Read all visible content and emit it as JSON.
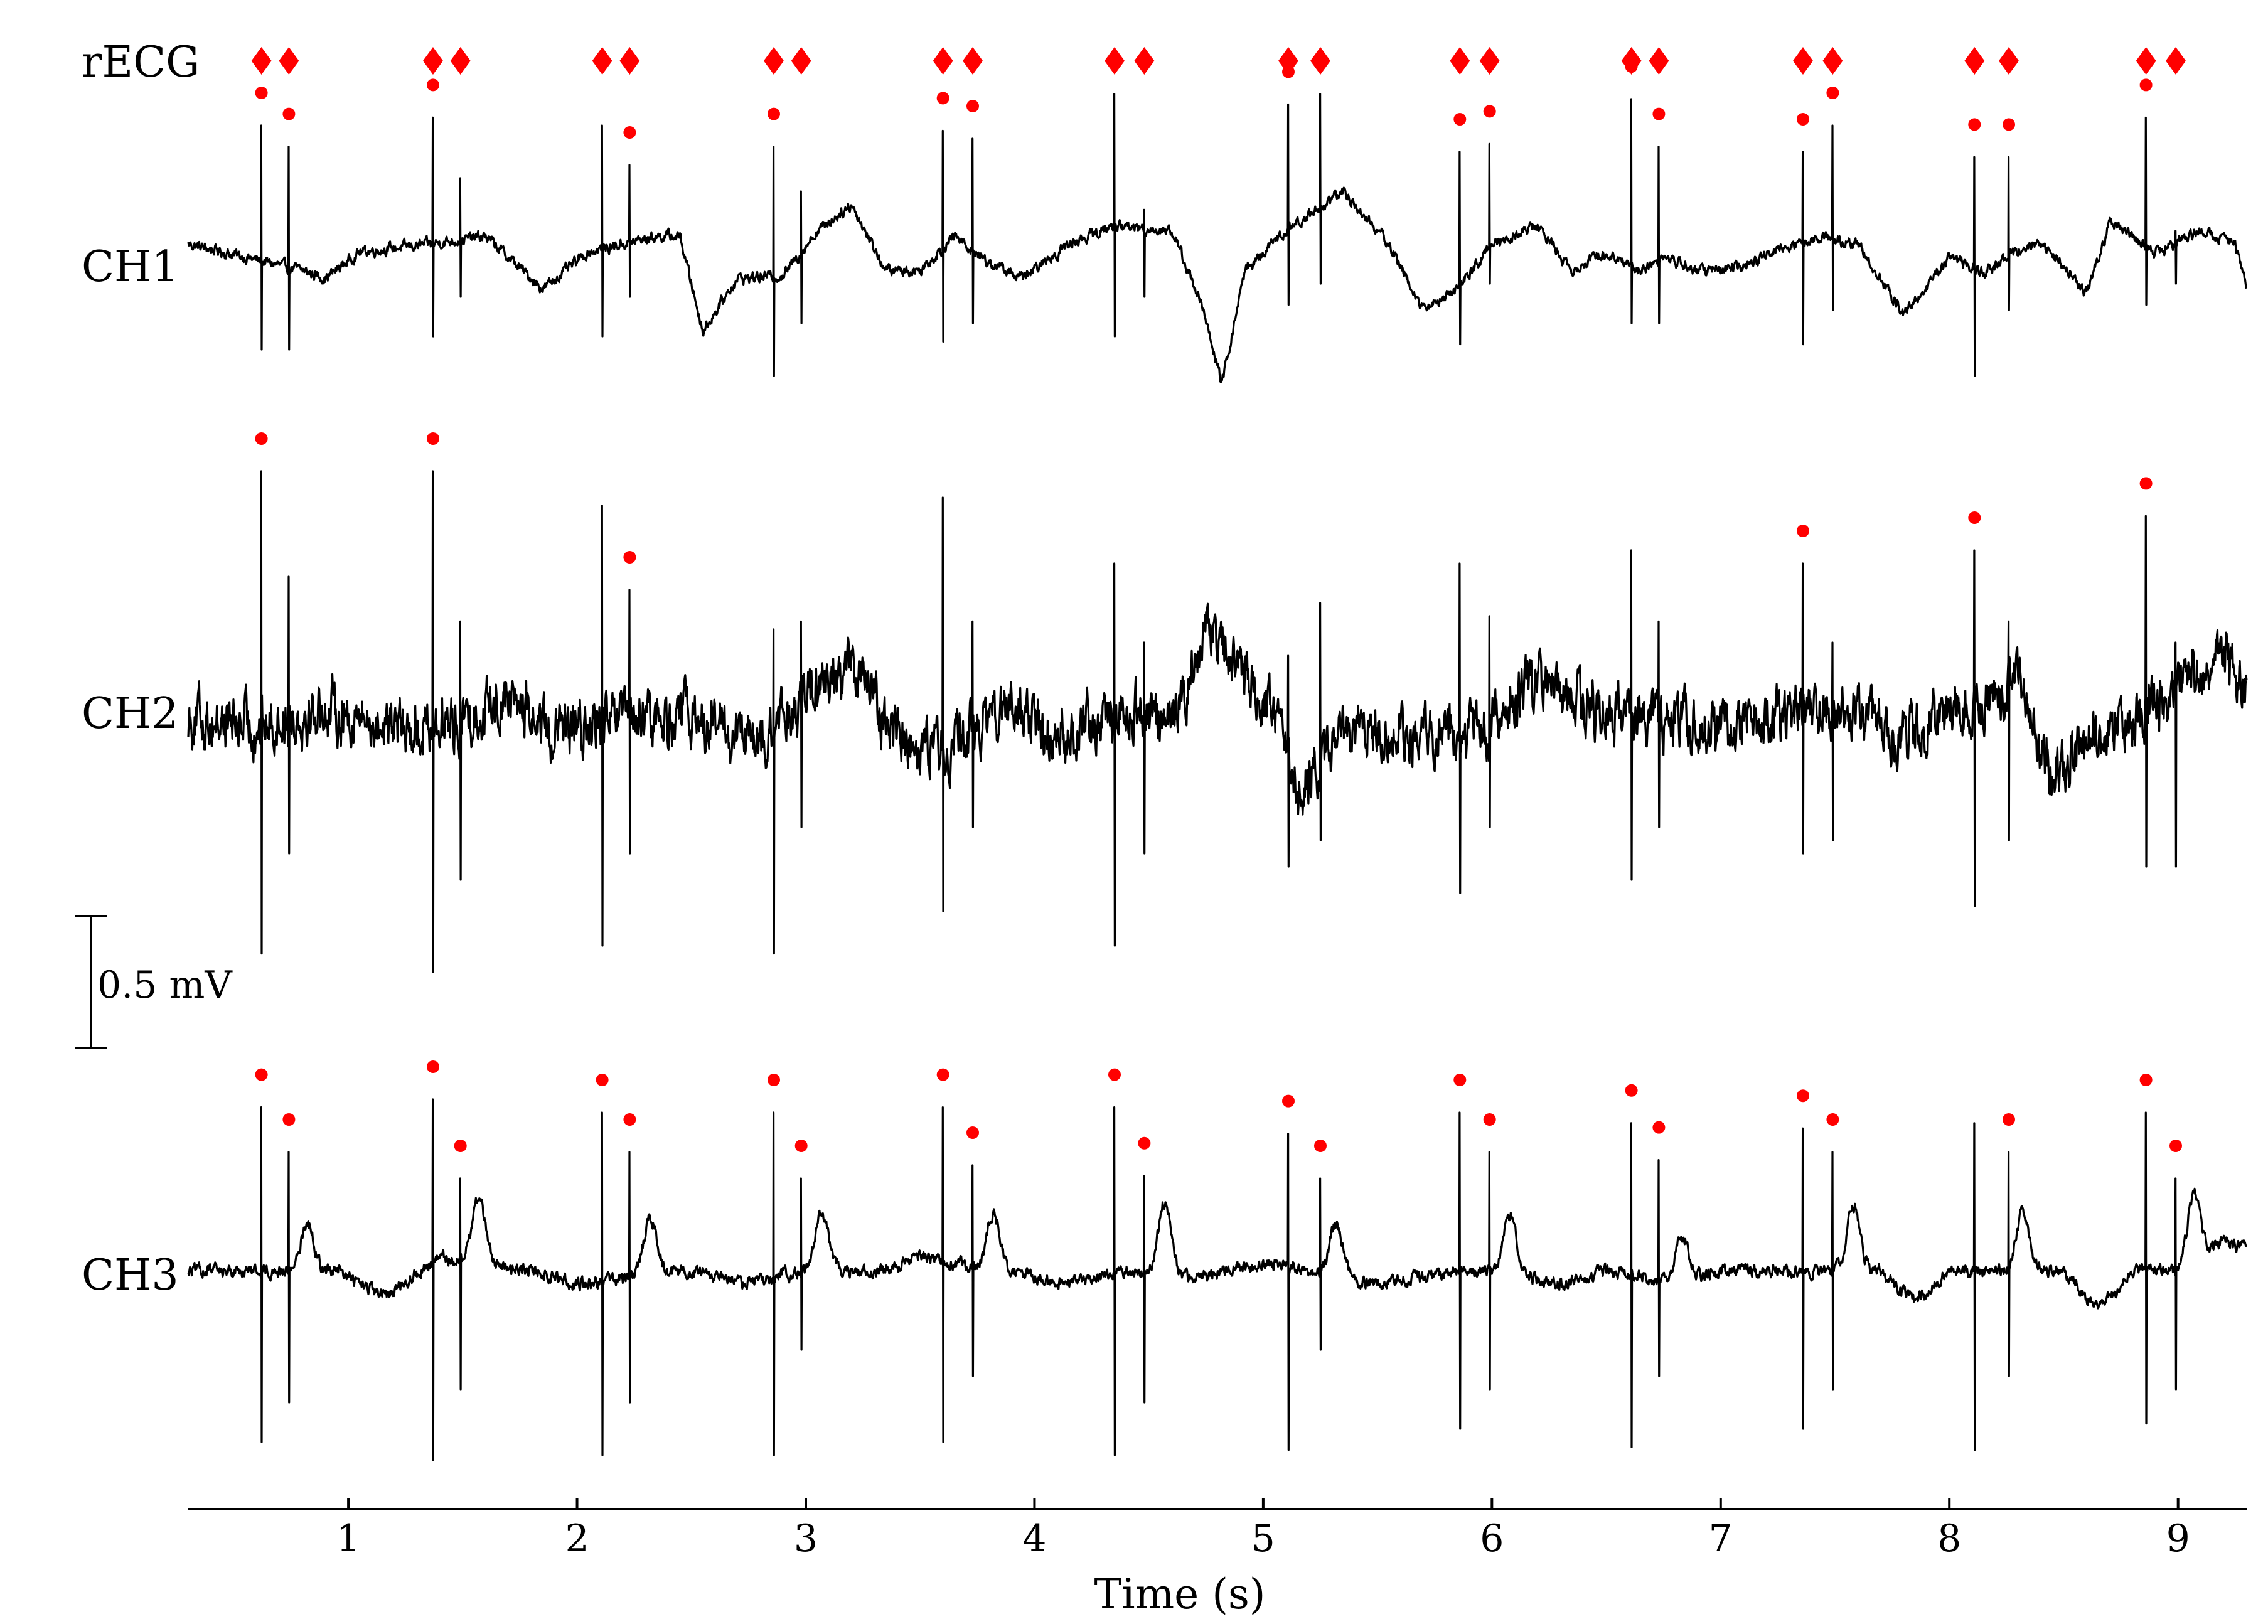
{
  "chart_data": {
    "type": "line",
    "xlabel": "Time (s)",
    "xlim": [
      0.3,
      9.3
    ],
    "xticks": [
      1,
      2,
      3,
      4,
      5,
      6,
      7,
      8,
      9
    ],
    "xtick_labels": [
      "1",
      "2",
      "3",
      "4",
      "5",
      "6",
      "7",
      "8",
      "9"
    ],
    "scale_bar": {
      "label": "0.5 mV",
      "value_mV": 0.5
    },
    "marker_color": "#ff0000",
    "line_color": "#000000",
    "recg": {
      "name": "rECG",
      "marker": "diamond",
      "beats": [
        0.62,
        0.74,
        1.37,
        1.49,
        2.11,
        2.23,
        2.86,
        2.98,
        3.6,
        3.73,
        4.35,
        4.48,
        5.11,
        5.25,
        5.86,
        5.99,
        6.61,
        6.73,
        7.36,
        7.49,
        8.11,
        8.26,
        8.86,
        8.99
      ]
    },
    "series": [
      {
        "name": "CH1",
        "noise": 0.016,
        "wander": [
          [
            0.3,
            0.05
          ],
          [
            0.55,
            0.0
          ],
          [
            0.8,
            -0.05
          ],
          [
            0.9,
            -0.08
          ],
          [
            1.05,
            0.02
          ],
          [
            1.35,
            0.05
          ],
          [
            1.6,
            0.08
          ],
          [
            1.85,
            -0.12
          ],
          [
            2.05,
            0.02
          ],
          [
            2.35,
            0.08
          ],
          [
            2.45,
            0.08
          ],
          [
            2.55,
            -0.28
          ],
          [
            2.7,
            -0.08
          ],
          [
            2.9,
            -0.07
          ],
          [
            3.05,
            0.1
          ],
          [
            3.2,
            0.2
          ],
          [
            3.35,
            -0.05
          ],
          [
            3.5,
            -0.05
          ],
          [
            3.65,
            0.08
          ],
          [
            3.8,
            -0.02
          ],
          [
            3.95,
            -0.08
          ],
          [
            4.15,
            0.05
          ],
          [
            4.35,
            0.12
          ],
          [
            4.6,
            0.1
          ],
          [
            4.72,
            -0.15
          ],
          [
            4.82,
            -0.48
          ],
          [
            4.92,
            -0.05
          ],
          [
            5.1,
            0.1
          ],
          [
            5.35,
            0.25
          ],
          [
            5.55,
            0.05
          ],
          [
            5.7,
            -0.2
          ],
          [
            5.85,
            -0.12
          ],
          [
            6.0,
            0.05
          ],
          [
            6.2,
            0.12
          ],
          [
            6.35,
            -0.05
          ],
          [
            6.5,
            0.02
          ],
          [
            6.65,
            -0.05
          ],
          [
            6.75,
            0.0
          ],
          [
            6.9,
            -0.05
          ],
          [
            7.1,
            -0.04
          ],
          [
            7.25,
            0.03
          ],
          [
            7.45,
            0.08
          ],
          [
            7.6,
            0.05
          ],
          [
            7.8,
            -0.22
          ],
          [
            8.0,
            0.0
          ],
          [
            8.15,
            -0.06
          ],
          [
            8.35,
            0.05
          ],
          [
            8.45,
            0.02
          ],
          [
            8.6,
            -0.14
          ],
          [
            8.7,
            0.13
          ],
          [
            8.9,
            0.02
          ],
          [
            9.1,
            0.1
          ],
          [
            9.25,
            0.05
          ],
          [
            9.3,
            -0.1
          ]
        ],
        "qrs_fetal": [
          [
            0.62,
            0.5,
            -0.35
          ],
          [
            1.37,
            0.53,
            -0.3
          ],
          [
            2.11,
            0.5,
            -0.3
          ],
          [
            2.86,
            0.42,
            -0.45
          ],
          [
            3.6,
            0.48,
            -0.32
          ],
          [
            4.35,
            0.62,
            -0.3
          ],
          [
            5.11,
            0.58,
            -0.18
          ],
          [
            5.86,
            0.4,
            -0.33
          ],
          [
            6.61,
            0.6,
            -0.25
          ],
          [
            7.36,
            0.4,
            -0.33
          ],
          [
            8.11,
            0.38,
            -0.45
          ],
          [
            8.86,
            0.53,
            -0.18
          ]
        ],
        "qrs_maternal": [
          [
            0.74,
            0.42,
            -0.35
          ],
          [
            1.49,
            0.3,
            -0.15
          ],
          [
            2.23,
            0.35,
            -0.15
          ],
          [
            2.98,
            0.25,
            -0.25
          ],
          [
            3.73,
            0.45,
            -0.25
          ],
          [
            4.48,
            0.18,
            -0.15
          ],
          [
            5.25,
            0.62,
            -0.1
          ],
          [
            5.99,
            0.43,
            -0.1
          ],
          [
            6.73,
            0.42,
            -0.25
          ],
          [
            7.49,
            0.5,
            -0.2
          ],
          [
            8.26,
            0.38,
            -0.2
          ],
          [
            8.99,
            0.1,
            -0.1
          ]
        ],
        "dots": [
          [
            0.62,
            0.5
          ],
          [
            0.74,
            0.42
          ],
          [
            1.37,
            0.53
          ],
          [
            2.23,
            0.35
          ],
          [
            2.86,
            0.42
          ],
          [
            3.6,
            0.48
          ],
          [
            3.73,
            0.45
          ],
          [
            4.35,
            0.62
          ],
          [
            5.11,
            0.58
          ],
          [
            5.25,
            0.62
          ],
          [
            5.86,
            0.4
          ],
          [
            5.99,
            0.43
          ],
          [
            6.61,
            0.6
          ],
          [
            6.73,
            0.42
          ],
          [
            7.36,
            0.4
          ],
          [
            7.49,
            0.5
          ],
          [
            8.11,
            0.38
          ],
          [
            8.26,
            0.38
          ],
          [
            8.86,
            0.53
          ]
        ]
      },
      {
        "name": "CH2",
        "noise": 0.08,
        "wander": [
          [
            0.3,
            0.02
          ],
          [
            0.6,
            -0.02
          ],
          [
            0.9,
            0.05
          ],
          [
            1.2,
            -0.03
          ],
          [
            1.5,
            0.0
          ],
          [
            1.7,
            0.1
          ],
          [
            1.9,
            -0.05
          ],
          [
            2.2,
            0.0
          ],
          [
            2.5,
            0.02
          ],
          [
            2.8,
            -0.1
          ],
          [
            3.0,
            0.1
          ],
          [
            3.2,
            0.22
          ],
          [
            3.4,
            -0.05
          ],
          [
            3.6,
            -0.1
          ],
          [
            3.9,
            0.05
          ],
          [
            4.1,
            -0.05
          ],
          [
            4.4,
            0.05
          ],
          [
            4.6,
            0.0
          ],
          [
            4.75,
            0.35
          ],
          [
            5.0,
            0.1
          ],
          [
            5.15,
            -0.25
          ],
          [
            5.4,
            0.0
          ],
          [
            5.6,
            -0.05
          ],
          [
            5.8,
            -0.05
          ],
          [
            6.0,
            0.0
          ],
          [
            6.2,
            0.15
          ],
          [
            6.5,
            0.02
          ],
          [
            6.8,
            0.0
          ],
          [
            7.1,
            -0.02
          ],
          [
            7.4,
            0.05
          ],
          [
            7.6,
            0.05
          ],
          [
            7.8,
            -0.05
          ],
          [
            8.0,
            0.02
          ],
          [
            8.3,
            0.15
          ],
          [
            8.45,
            -0.2
          ],
          [
            8.6,
            -0.1
          ],
          [
            8.8,
            0.0
          ],
          [
            9.0,
            0.15
          ],
          [
            9.2,
            0.25
          ],
          [
            9.3,
            0.1
          ]
        ],
        "qrs_fetal": [
          [
            0.62,
            0.95,
            -0.88
          ],
          [
            1.37,
            0.95,
            -0.95
          ],
          [
            2.11,
            0.82,
            -0.85
          ],
          [
            2.86,
            0.35,
            -0.88
          ],
          [
            3.6,
            0.85,
            -0.72
          ],
          [
            4.35,
            0.6,
            -0.85
          ],
          [
            5.11,
            0.25,
            -0.55
          ],
          [
            5.86,
            0.6,
            -0.65
          ],
          [
            6.61,
            0.65,
            -0.6
          ],
          [
            7.36,
            0.6,
            -0.5
          ],
          [
            8.11,
            0.65,
            -0.7
          ],
          [
            8.86,
            0.78,
            -0.55
          ]
        ],
        "qrs_maternal": [
          [
            0.74,
            0.55,
            -0.5
          ],
          [
            1.49,
            0.38,
            -0.6
          ],
          [
            2.23,
            0.5,
            -0.5
          ],
          [
            2.98,
            0.38,
            -0.4
          ],
          [
            3.73,
            0.38,
            -0.4
          ],
          [
            4.48,
            0.3,
            -0.5
          ],
          [
            5.25,
            0.45,
            -0.45
          ],
          [
            5.99,
            0.4,
            -0.4
          ],
          [
            6.73,
            0.38,
            -0.4
          ],
          [
            7.49,
            0.3,
            -0.45
          ],
          [
            8.26,
            0.38,
            -0.45
          ],
          [
            8.99,
            0.3,
            -0.55
          ]
        ],
        "dots": [
          [
            0.62,
            0.95
          ],
          [
            1.37,
            0.95
          ],
          [
            2.23,
            0.5
          ],
          [
            7.36,
            0.6
          ],
          [
            8.11,
            0.65
          ],
          [
            8.86,
            0.78
          ]
        ]
      },
      {
        "name": "CH3",
        "noise": 0.018,
        "wander": [
          [
            0.3,
            0.0
          ],
          [
            0.8,
            0.0
          ],
          [
            0.95,
            0.0
          ],
          [
            1.15,
            -0.1
          ],
          [
            1.4,
            0.05
          ],
          [
            1.8,
            0.0
          ],
          [
            2.0,
            -0.05
          ],
          [
            2.5,
            0.0
          ],
          [
            2.7,
            -0.05
          ],
          [
            3.0,
            0.0
          ],
          [
            3.35,
            0.0
          ],
          [
            3.5,
            0.05
          ],
          [
            3.9,
            0.0
          ],
          [
            4.1,
            -0.05
          ],
          [
            4.4,
            0.0
          ],
          [
            4.7,
            -0.03
          ],
          [
            5.0,
            0.03
          ],
          [
            5.5,
            -0.05
          ],
          [
            5.7,
            -0.02
          ],
          [
            6.0,
            0.0
          ],
          [
            6.3,
            -0.05
          ],
          [
            6.5,
            0.0
          ],
          [
            6.8,
            -0.05
          ],
          [
            7.0,
            0.0
          ],
          [
            7.2,
            0.0
          ],
          [
            7.5,
            0.0
          ],
          [
            7.7,
            0.0
          ],
          [
            7.85,
            -0.12
          ],
          [
            8.0,
            0.0
          ],
          [
            8.5,
            0.0
          ],
          [
            8.65,
            -0.15
          ],
          [
            8.8,
            0.0
          ],
          [
            9.0,
            0.0
          ],
          [
            9.2,
            0.12
          ],
          [
            9.3,
            0.08
          ]
        ],
        "p_waves": [
          [
            0.82,
            0.18
          ],
          [
            1.57,
            0.25
          ],
          [
            2.32,
            0.22
          ],
          [
            3.07,
            0.22
          ],
          [
            3.82,
            0.2
          ],
          [
            4.57,
            0.28
          ],
          [
            5.32,
            0.2
          ],
          [
            6.08,
            0.22
          ],
          [
            6.83,
            0.18
          ],
          [
            7.58,
            0.25
          ],
          [
            8.32,
            0.22
          ],
          [
            9.07,
            0.25
          ]
        ],
        "qrs_fetal": [
          [
            0.62,
            0.62,
            -0.65
          ],
          [
            1.37,
            0.65,
            -0.72
          ],
          [
            2.11,
            0.6,
            -0.7
          ],
          [
            2.86,
            0.6,
            -0.7
          ],
          [
            3.6,
            0.62,
            -0.65
          ],
          [
            4.35,
            0.62,
            -0.7
          ],
          [
            5.11,
            0.52,
            -0.68
          ],
          [
            5.86,
            0.6,
            -0.6
          ],
          [
            6.61,
            0.56,
            -0.67
          ],
          [
            7.36,
            0.54,
            -0.6
          ],
          [
            8.11,
            0.56,
            -0.68
          ],
          [
            8.86,
            0.6,
            -0.58
          ]
        ],
        "qrs_maternal": [
          [
            0.74,
            0.45,
            -0.5
          ],
          [
            1.49,
            0.35,
            -0.45
          ],
          [
            2.23,
            0.45,
            -0.5
          ],
          [
            2.98,
            0.35,
            -0.3
          ],
          [
            3.73,
            0.4,
            -0.4
          ],
          [
            4.48,
            0.36,
            -0.5
          ],
          [
            5.25,
            0.35,
            -0.3
          ],
          [
            5.99,
            0.45,
            -0.45
          ],
          [
            6.73,
            0.42,
            -0.4
          ],
          [
            7.49,
            0.45,
            -0.45
          ],
          [
            8.26,
            0.45,
            -0.4
          ],
          [
            8.99,
            0.35,
            -0.45
          ]
        ],
        "dots": [
          [
            0.62,
            0.62
          ],
          [
            0.74,
            0.45
          ],
          [
            1.37,
            0.65
          ],
          [
            1.49,
            0.35
          ],
          [
            2.11,
            0.6
          ],
          [
            2.23,
            0.45
          ],
          [
            2.86,
            0.6
          ],
          [
            2.98,
            0.35
          ],
          [
            3.6,
            0.62
          ],
          [
            3.73,
            0.4
          ],
          [
            4.35,
            0.62
          ],
          [
            4.48,
            0.36
          ],
          [
            5.11,
            0.52
          ],
          [
            5.25,
            0.35
          ],
          [
            5.86,
            0.6
          ],
          [
            5.99,
            0.45
          ],
          [
            6.61,
            0.56
          ],
          [
            6.73,
            0.42
          ],
          [
            7.36,
            0.54
          ],
          [
            7.49,
            0.45
          ],
          [
            8.26,
            0.45
          ],
          [
            8.86,
            0.6
          ],
          [
            8.99,
            0.35
          ]
        ]
      }
    ]
  }
}
